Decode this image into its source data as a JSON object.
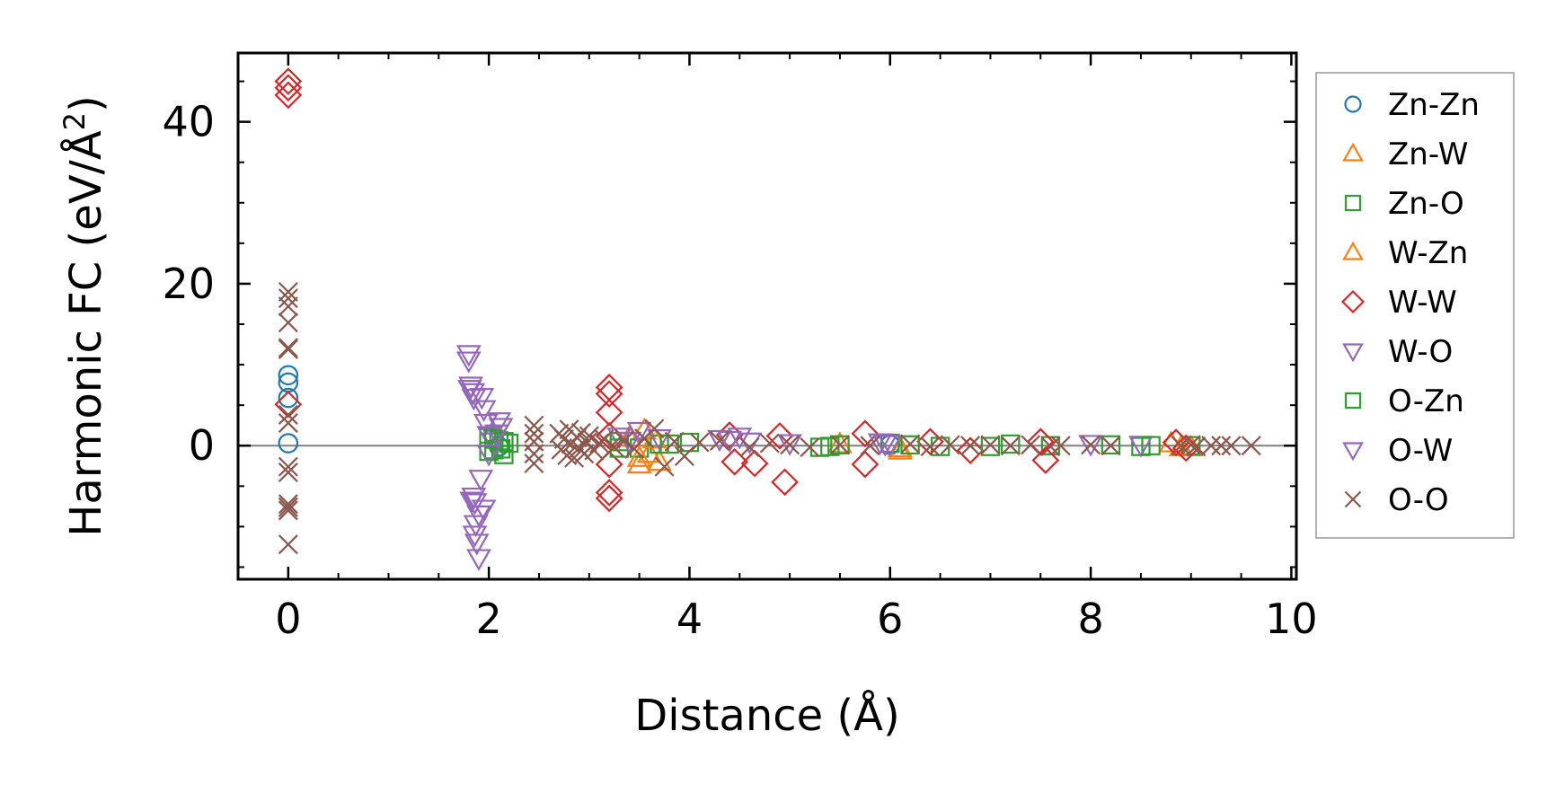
{
  "chart_data": {
    "type": "scatter",
    "xlabel": "Distance (Å)",
    "ylabel": "Harmonic FC (eV/Å",
    "ylabel_sup": "2",
    "ylabel_end": ")",
    "xlim": [
      -0.5,
      10.05
    ],
    "ylim": [
      -16.5,
      48.5
    ],
    "xticks": [
      0,
      2,
      4,
      6,
      8,
      10
    ],
    "xtick_labels": [
      "0",
      "2",
      "4",
      "6",
      "8",
      "10"
    ],
    "yticks": [
      0,
      20,
      40
    ],
    "ytick_labels": [
      "0",
      "20",
      "40"
    ],
    "grid": false,
    "zero_line": true,
    "legend_position": "outside-right",
    "series": [
      {
        "name": "Zn-Zn",
        "marker": "circle",
        "color": "#1f77b4",
        "x": [
          0,
          0,
          0,
          0,
          6.0,
          2.1
        ],
        "y": [
          8.7,
          7.8,
          5.9,
          0.3,
          0.1,
          -0.1
        ]
      },
      {
        "name": "Zn-W",
        "marker": "triangle-up",
        "color": "#ff7f0e",
        "x": [
          3.5,
          3.55,
          3.6,
          3.7,
          5.5,
          6.1,
          8.8,
          9.0
        ],
        "y": [
          -2.3,
          1.9,
          -1.0,
          -2.0,
          0.2,
          -0.6,
          0.3,
          -0.2
        ]
      },
      {
        "name": "Zn-O",
        "marker": "square",
        "color": "#2ca02c",
        "x": [
          2.0,
          2.05,
          2.1,
          2.15,
          2.2,
          3.3,
          3.5,
          3.7,
          4.0,
          5.3,
          5.5,
          6.0,
          6.5,
          7.2,
          7.6,
          8.2,
          8.5,
          9.0
        ],
        "y": [
          1.0,
          -0.5,
          0.6,
          -1.1,
          0.3,
          0.5,
          -0.3,
          0.2,
          0.4,
          -0.2,
          0.1,
          0.3,
          -0.1,
          0.2,
          0.0,
          0.1,
          -0.1,
          0.0
        ]
      },
      {
        "name": "W-Zn",
        "marker": "triangle-up",
        "color": "#ff7f0e",
        "x": [
          3.4,
          3.5,
          3.65,
          6.1,
          8.9
        ],
        "y": [
          1.0,
          -1.5,
          0.8,
          -0.3,
          -0.2
        ]
      },
      {
        "name": "W-W",
        "marker": "diamond",
        "color": "#d62728",
        "x": [
          0,
          0,
          0,
          0,
          3.2,
          3.2,
          3.2,
          3.2,
          3.2,
          3.2,
          3.2,
          4.4,
          4.45,
          4.65,
          4.9,
          4.95,
          5.75,
          5.75,
          6.4,
          6.8,
          7.5,
          7.55,
          8.85,
          8.95
        ],
        "y": [
          45.0,
          44.2,
          43.3,
          5.1,
          7.2,
          6.4,
          4.1,
          1.2,
          -2.3,
          -5.8,
          -6.5,
          1.3,
          -2.0,
          -2.2,
          1.2,
          -4.5,
          1.5,
          -2.3,
          0.5,
          -0.6,
          0.5,
          -1.8,
          0.4,
          -0.3
        ]
      },
      {
        "name": "W-O",
        "marker": "triangle-down",
        "color": "#9467bd",
        "x": [
          1.8,
          1.8,
          1.82,
          1.84,
          1.85,
          1.85,
          1.86,
          1.87,
          1.88,
          1.9,
          1.92,
          1.95,
          1.95,
          1.97,
          2.0,
          2.05,
          2.1,
          2.12,
          3.3,
          3.5,
          3.7,
          4.3,
          4.5,
          4.6,
          5.0,
          5.9,
          6.0,
          8.0,
          8.5
        ],
        "y": [
          11.3,
          10.5,
          7.4,
          6.6,
          5.9,
          -6.3,
          -7.0,
          -9.7,
          -12.0,
          -13.9,
          -4.1,
          -7.8,
          4.5,
          2.8,
          1.3,
          0.5,
          3.0,
          2.3,
          1.1,
          1.8,
          0.9,
          0.8,
          1.1,
          0.5,
          0.3,
          0.4,
          0.2,
          0.2,
          0.1
        ]
      },
      {
        "name": "O-Zn",
        "marker": "square",
        "color": "#2ca02c",
        "x": [
          2.0,
          2.05,
          2.12,
          2.15,
          3.3,
          3.8,
          5.4,
          6.2,
          7.0,
          8.6
        ],
        "y": [
          -0.7,
          0.8,
          -0.4,
          0.5,
          -0.3,
          0.2,
          -0.1,
          0.1,
          -0.1,
          0.0
        ]
      },
      {
        "name": "O-W",
        "marker": "triangle-down",
        "color": "#9467bd",
        "x": [
          1.81,
          1.83,
          1.86,
          1.9,
          1.93,
          2.0,
          2.08,
          3.4,
          4.4,
          5.95
        ],
        "y": [
          7.0,
          -6.8,
          -11.0,
          -8.5,
          6.0,
          -1.0,
          1.5,
          0.6,
          0.7,
          0.2
        ]
      },
      {
        "name": "O-O",
        "marker": "x",
        "color": "#8c564b",
        "x": [
          0,
          0,
          0,
          0,
          0,
          0,
          0,
          0,
          0,
          0,
          0,
          0,
          0,
          0,
          2.45,
          2.45,
          2.45,
          2.45,
          2.45,
          2.7,
          2.72,
          2.75,
          2.78,
          2.8,
          2.82,
          2.85,
          2.88,
          2.9,
          2.92,
          2.95,
          2.98,
          3.0,
          3.05,
          3.1,
          3.15,
          3.25,
          3.35,
          3.45,
          3.55,
          3.65,
          3.75,
          3.85,
          3.95,
          4.1,
          4.3,
          4.6,
          4.8,
          5.0,
          5.2,
          5.5,
          5.8,
          6.2,
          6.4,
          6.6,
          6.8,
          7.0,
          7.2,
          7.4,
          7.6,
          7.7,
          8.0,
          8.2,
          8.9,
          9.0,
          9.05,
          9.2,
          9.3,
          9.4,
          9.6
        ],
        "y": [
          19.0,
          18.2,
          17.2,
          15.2,
          12.1,
          11.9,
          3.8,
          2.8,
          -2.6,
          -3.3,
          -7.2,
          -7.6,
          -8.0,
          -12.2,
          2.5,
          1.5,
          0.5,
          -1.0,
          -2.2,
          1.5,
          -0.5,
          0.8,
          -1.2,
          2.0,
          0.2,
          -1.5,
          1.0,
          -0.3,
          1.6,
          -1.0,
          0.4,
          1.2,
          -0.6,
          0.3,
          0.8,
          -0.2,
          0.6,
          -0.4,
          0.9,
          2.1,
          -2.6,
          0.5,
          -1.3,
          0.4,
          0.6,
          -0.2,
          0.3,
          0.1,
          -0.2,
          0.1,
          0.0,
          0.2,
          -0.1,
          0.1,
          0.0,
          0.1,
          0.0,
          0.1,
          -0.1,
          0.0,
          0.1,
          0.0,
          0.0,
          0.1,
          -0.1,
          0.0,
          0.0,
          0.0,
          0.0
        ]
      }
    ]
  }
}
